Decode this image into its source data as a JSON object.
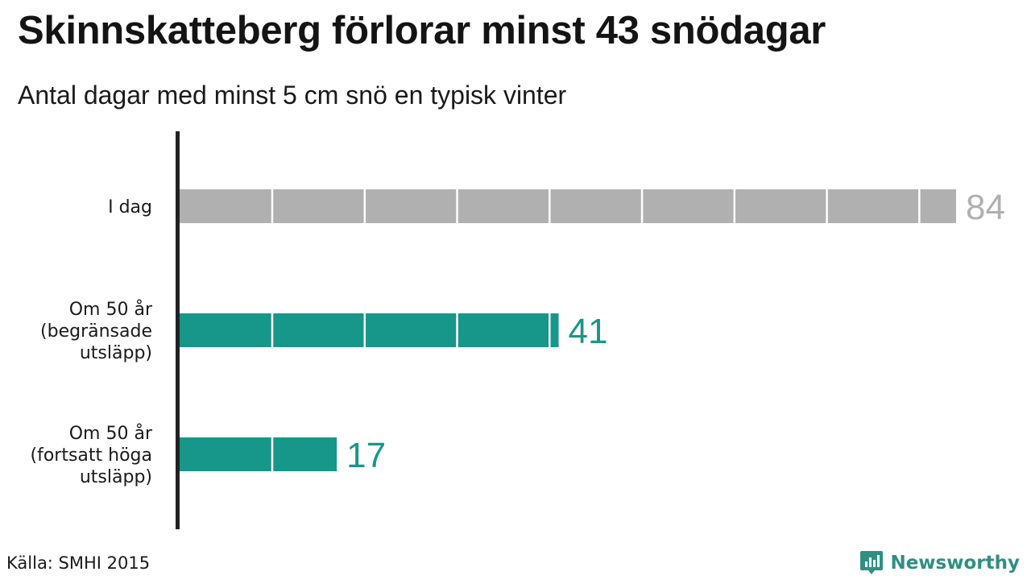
{
  "title": "Skinnskatteberg förlorar minst 43 snödagar",
  "subtitle": "Antal dagar med minst 5 cm snö en typisk vinter",
  "source": "Källa: SMHI 2015",
  "brand": {
    "name": "Newsworthy",
    "icon": "newsworthy-logo-icon"
  },
  "colors": {
    "today": "#b0b0b0",
    "future": "#16978a",
    "axis": "#222222",
    "brand": "#2f8f83"
  },
  "chart_data": {
    "type": "bar",
    "orientation": "horizontal",
    "categories": [
      [
        "I dag"
      ],
      [
        "Om 50 år",
        "(begränsade",
        "utsläpp)"
      ],
      [
        "Om 50 år",
        "(fortsatt höga",
        "utsläpp)"
      ]
    ],
    "values": [
      84,
      41,
      17
    ],
    "value_labels": [
      "84",
      "41",
      "17"
    ],
    "bar_colors": [
      "#b0b0b0",
      "#16978a",
      "#16978a"
    ],
    "segment_size": 10,
    "xlim": [
      0,
      84
    ],
    "grid": false,
    "legend": "none"
  }
}
